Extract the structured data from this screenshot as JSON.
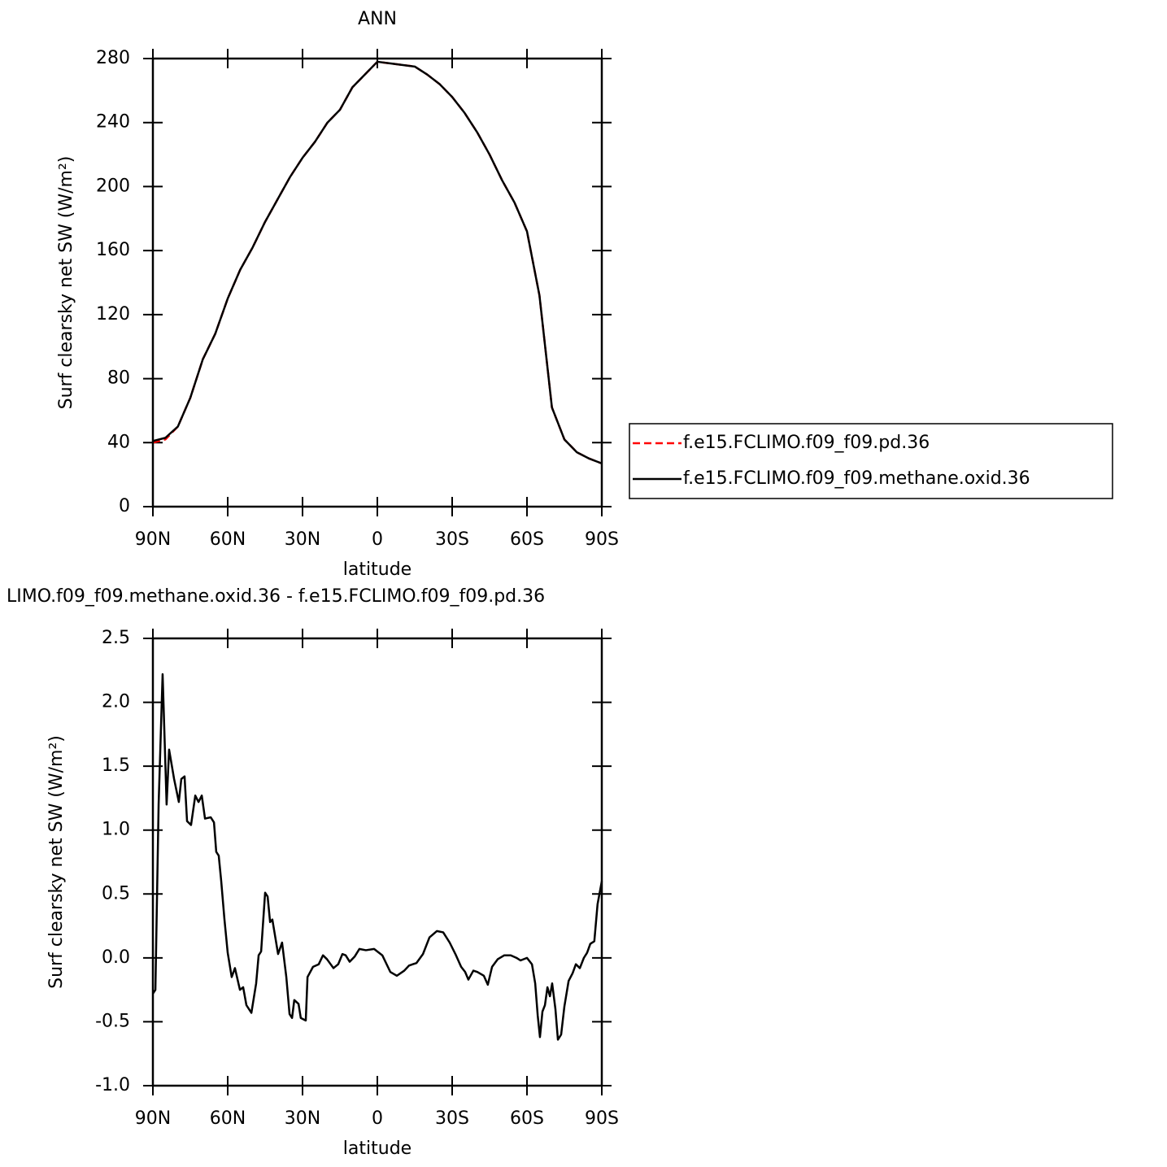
{
  "chart_data": [
    {
      "type": "line",
      "title": "ANN",
      "xlabel": "latitude",
      "ylabel": "Surf clearsky net SW (W/m²)",
      "x": [
        90,
        85,
        80,
        75,
        70,
        65,
        60,
        55,
        50,
        45,
        40,
        35,
        30,
        25,
        20,
        15,
        10,
        5,
        0,
        -5,
        -10,
        -15,
        -20,
        -25,
        -30,
        -35,
        -40,
        -45,
        -50,
        -55,
        -60,
        -65,
        -70,
        -75,
        -80,
        -85,
        -90
      ],
      "series": [
        {
          "name": "f.e15.FCLIMO.f09_f09.pd.36",
          "color": "#ff0000",
          "line_style": "dashed",
          "values": [
            40,
            42,
            50,
            68,
            92,
            108,
            130,
            148,
            162,
            178,
            192,
            206,
            218,
            228,
            240,
            248,
            262,
            270,
            278,
            277,
            276,
            275,
            270,
            264,
            256,
            246,
            234,
            220,
            204,
            190,
            172,
            132,
            62,
            42,
            34,
            30,
            27
          ]
        },
        {
          "name": "f.e15.FCLIMO.f09_f09.methane.oxid.36",
          "color": "#000000",
          "line_style": "solid",
          "values": [
            41,
            43,
            50,
            68,
            92,
            108,
            130,
            148,
            162,
            178,
            192,
            206,
            218,
            228,
            240,
            248,
            262,
            270,
            278,
            277,
            276,
            275,
            270,
            264,
            256,
            246,
            234,
            220,
            204,
            190,
            172,
            132,
            62,
            42,
            34,
            30,
            27
          ]
        }
      ],
      "xlim": [
        90,
        -90
      ],
      "ylim": [
        0,
        280
      ],
      "xticks": [
        {
          "value": 90,
          "label": "90N"
        },
        {
          "value": 60,
          "label": "60N"
        },
        {
          "value": 30,
          "label": "30N"
        },
        0,
        {
          "value": -30,
          "label": "30S"
        },
        {
          "value": -60,
          "label": "60S"
        },
        {
          "value": -90,
          "label": "90S"
        }
      ],
      "yticks": [
        0,
        40,
        80,
        120,
        160,
        200,
        240,
        280
      ]
    },
    {
      "type": "line",
      "title": "LIMO.f09_f09.methane.oxid.36 - f.e15.FCLIMO.f09_f09.pd.36",
      "xlabel": "latitude",
      "ylabel": "Surf clearsky net SW (W/m²)",
      "x": [
        90,
        89,
        87.7,
        86.1,
        84.5,
        83.5,
        81.5,
        79.6,
        78.6,
        77.3,
        76.3,
        74.7,
        73,
        71.7,
        70.4,
        69.1,
        66.8,
        65.5,
        64.6,
        63.6,
        62.6,
        61.3,
        60,
        58.4,
        57.1,
        55.1,
        53.8,
        52.5,
        50.5,
        48.6,
        47.6,
        46.6,
        45,
        44,
        43,
        42.1,
        39.8,
        38.2,
        36.5,
        35.2,
        34.2,
        33.3,
        31.6,
        30.7,
        28.7,
        28,
        25.8,
        23.5,
        21.8,
        20.2,
        17.6,
        15.7,
        14,
        12.7,
        11.1,
        9.1,
        7.2,
        4.6,
        1.3,
        -2,
        -5.2,
        -7.8,
        -10.8,
        -12.7,
        -15.7,
        -18.3,
        -20.9,
        -23.9,
        -26.4,
        -29,
        -31.3,
        -33.6,
        -35.2,
        -36.5,
        -38.5,
        -40.1,
        -42.7,
        -44.3,
        -46,
        -48.3,
        -50.9,
        -53.5,
        -55.8,
        -57.4,
        -60,
        -62,
        -63.3,
        -64.3,
        -65.2,
        -66.2,
        -67.2,
        -68.2,
        -69.2,
        -70.1,
        -71.4,
        -72.4,
        -73.7,
        -75,
        -76.7,
        -78.3,
        -79.6,
        -81.2,
        -82.8,
        -84.1,
        -85.4,
        -87,
        -88.3,
        -90
      ],
      "series": [
        {
          "color": "#000000",
          "line_style": "solid",
          "values": [
            -0.28,
            -0.25,
            1.2,
            2.22,
            1.2,
            1.63,
            1.4,
            1.22,
            1.4,
            1.42,
            1.07,
            1.04,
            1.27,
            1.22,
            1.27,
            1.09,
            1.1,
            1.06,
            0.83,
            0.8,
            0.6,
            0.3,
            0.04,
            -0.15,
            -0.08,
            -0.25,
            -0.23,
            -0.37,
            -0.43,
            -0.2,
            0.02,
            0.05,
            0.51,
            0.48,
            0.28,
            0.3,
            0.03,
            0.12,
            -0.15,
            -0.44,
            -0.47,
            -0.33,
            -0.36,
            -0.47,
            -0.49,
            -0.15,
            -0.07,
            -0.05,
            0.02,
            -0.01,
            -0.08,
            -0.05,
            0.03,
            0.02,
            -0.03,
            0.01,
            0.07,
            0.06,
            0.07,
            0.02,
            -0.11,
            -0.14,
            -0.1,
            -0.06,
            -0.04,
            0.03,
            0.16,
            0.21,
            0.2,
            0.12,
            0.03,
            -0.07,
            -0.11,
            -0.17,
            -0.1,
            -0.11,
            -0.14,
            -0.21,
            -0.07,
            -0.01,
            0.02,
            0.02,
            0,
            -0.02,
            0,
            -0.05,
            -0.2,
            -0.45,
            -0.62,
            -0.42,
            -0.37,
            -0.23,
            -0.3,
            -0.2,
            -0.4,
            -0.64,
            -0.6,
            -0.38,
            -0.18,
            -0.12,
            -0.05,
            -0.08,
            0,
            0.04,
            0.11,
            0.13,
            0.42,
            0.6
          ]
        }
      ],
      "xlim": [
        90,
        -90
      ],
      "ylim": [
        -1,
        2.5
      ],
      "xticks": [
        {
          "value": 90,
          "label": "90N"
        },
        {
          "value": 60,
          "label": "60N"
        },
        {
          "value": 30,
          "label": "30N"
        },
        0,
        {
          "value": -30,
          "label": "30S"
        },
        {
          "value": -60,
          "label": "60S"
        },
        {
          "value": -90,
          "label": "90S"
        }
      ],
      "yticks": [
        {
          "value": -1,
          "label": "-1.0"
        },
        {
          "value": -0.5,
          "label": "-0.5"
        },
        {
          "value": 0,
          "label": "0.0"
        },
        0.5,
        {
          "value": 1,
          "label": "1.0"
        },
        1.5,
        {
          "value": 2,
          "label": "2.0"
        },
        2.5
      ]
    }
  ]
}
